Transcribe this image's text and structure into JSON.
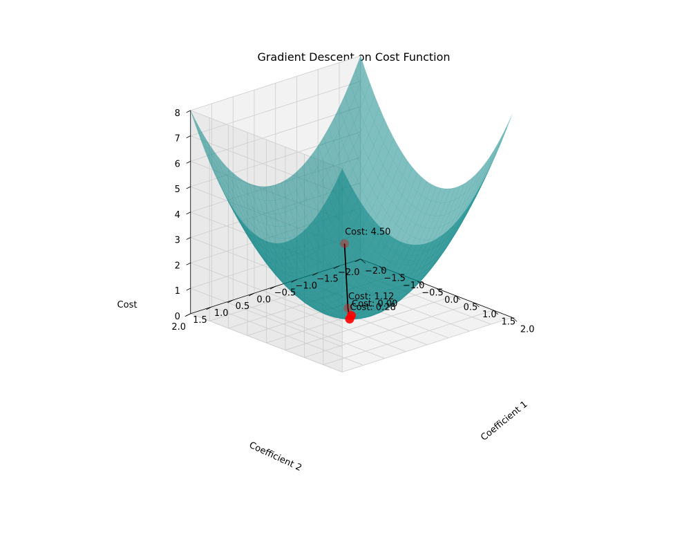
{
  "chart_data": {
    "type": "surface3d",
    "title": "Gradient Descent on Cost Function",
    "xlabel": "Coefficient 1",
    "ylabel": "Coefficient 2",
    "zlabel": "Cost",
    "xlim": [
      -2,
      2
    ],
    "ylim": [
      -2,
      2
    ],
    "zlim": [
      0,
      8
    ],
    "x_ticks": [
      "−2.0",
      "−1.5",
      "−1.0",
      "−0.5",
      "0.0",
      "0.5",
      "1.0",
      "1.5",
      "2.0"
    ],
    "y_ticks": [
      "2.0",
      "1.5",
      "1.0",
      "0.5",
      "0.0",
      "−0.5",
      "−1.0",
      "−1.5",
      "−2.0"
    ],
    "z_ticks": [
      "0",
      "1",
      "2",
      "3",
      "4",
      "5",
      "6",
      "7",
      "8"
    ],
    "surface": {
      "function": "cost = (c1^2 + c2^2)",
      "color": "#008080",
      "alpha": 0.5
    },
    "descent_path": {
      "points": [
        {
          "c1": 1.5,
          "c2": 1.5,
          "cost": 4.5,
          "label": "Cost: 4.50"
        },
        {
          "c1": 0.75,
          "c2": 0.75,
          "cost": 1.125,
          "label": "Cost: 1.12"
        },
        {
          "c1": 0.375,
          "c2": 0.375,
          "cost": 0.28125,
          "label": "Cost: 0.28"
        },
        {
          "c1": 0.0,
          "c2": 0.0,
          "cost": 0.0,
          "label": "Cost: 0.00"
        }
      ],
      "line_color": "#000000",
      "marker_color": "#ff0000"
    },
    "grid": true
  }
}
